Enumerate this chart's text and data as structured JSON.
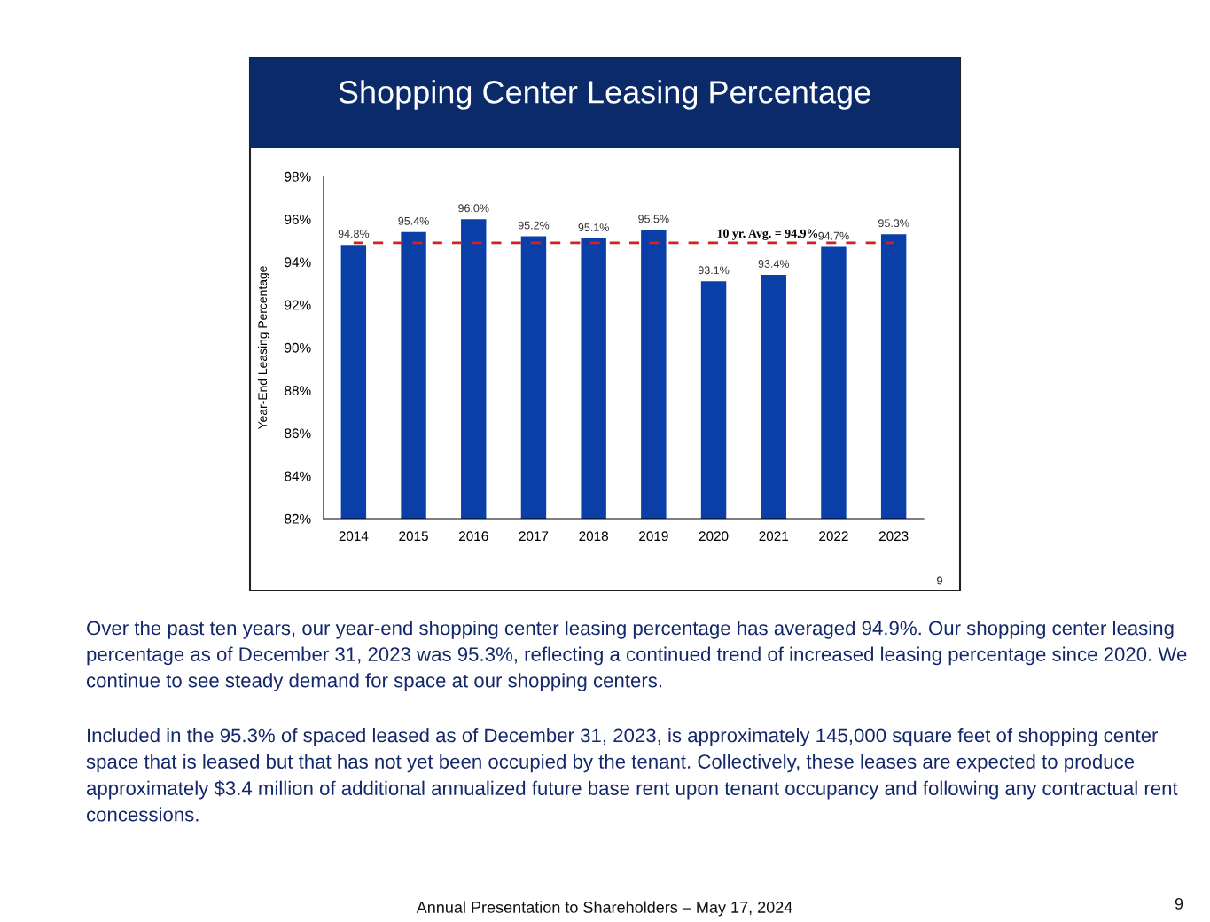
{
  "chart_data": {
    "type": "bar",
    "title": "Shopping Center Leasing Percentage",
    "ylabel": "Year-End Leasing Percentage",
    "categories": [
      "2014",
      "2015",
      "2016",
      "2017",
      "2018",
      "2019",
      "2020",
      "2021",
      "2022",
      "2023"
    ],
    "values": [
      94.8,
      95.4,
      96.0,
      95.2,
      95.1,
      95.5,
      93.1,
      93.4,
      94.7,
      95.3
    ],
    "value_labels": [
      "94.8%",
      "95.4%",
      "96.0%",
      "95.2%",
      "95.1%",
      "95.5%",
      "93.1%",
      "93.4%",
      "94.7%",
      "95.3%"
    ],
    "color": "#0b3fa8",
    "ylim": [
      82,
      98
    ],
    "yticks": [
      {
        "value": 82,
        "label": "82%"
      },
      {
        "value": 84,
        "label": "84%"
      },
      {
        "value": 86,
        "label": "86%"
      },
      {
        "value": 88,
        "label": "88%"
      },
      {
        "value": 90,
        "label": "90%"
      },
      {
        "value": 92,
        "label": "92%"
      },
      {
        "value": 94,
        "label": "94%"
      },
      {
        "value": 96,
        "label": "96%"
      },
      {
        "value": 98,
        "label": "98%"
      }
    ],
    "ref_lines": [
      {
        "axis": "y",
        "value": 94.9,
        "label": "10 yr. Avg. = 94.9%",
        "color": "#d42020",
        "line_style": "dashed"
      }
    ],
    "grid": false,
    "annotations": [
      "9",
      "Over the past ten years, our year-end shopping center leasing percentage has averaged 94.9%. Our shopping center leasing percentage as of December 31, 2023 was 95.3%, reflecting a continued trend of increased leasing percentage since 2020. We continue to see steady demand for space at our shopping centers.",
      "Included in the 95.3% of spaced leased as of December 31, 2023, is approximately 145,000 square feet of shopping center space that is leased but that has not yet been occupied by the tenant. Collectively, these leases are expected to produce approximately $3.4 million of additional annualized future base rent upon tenant occupancy and following any contractual rent concessions.",
      "Annual Presentation to Shareholders – May 17, 2024",
      "9"
    ]
  }
}
